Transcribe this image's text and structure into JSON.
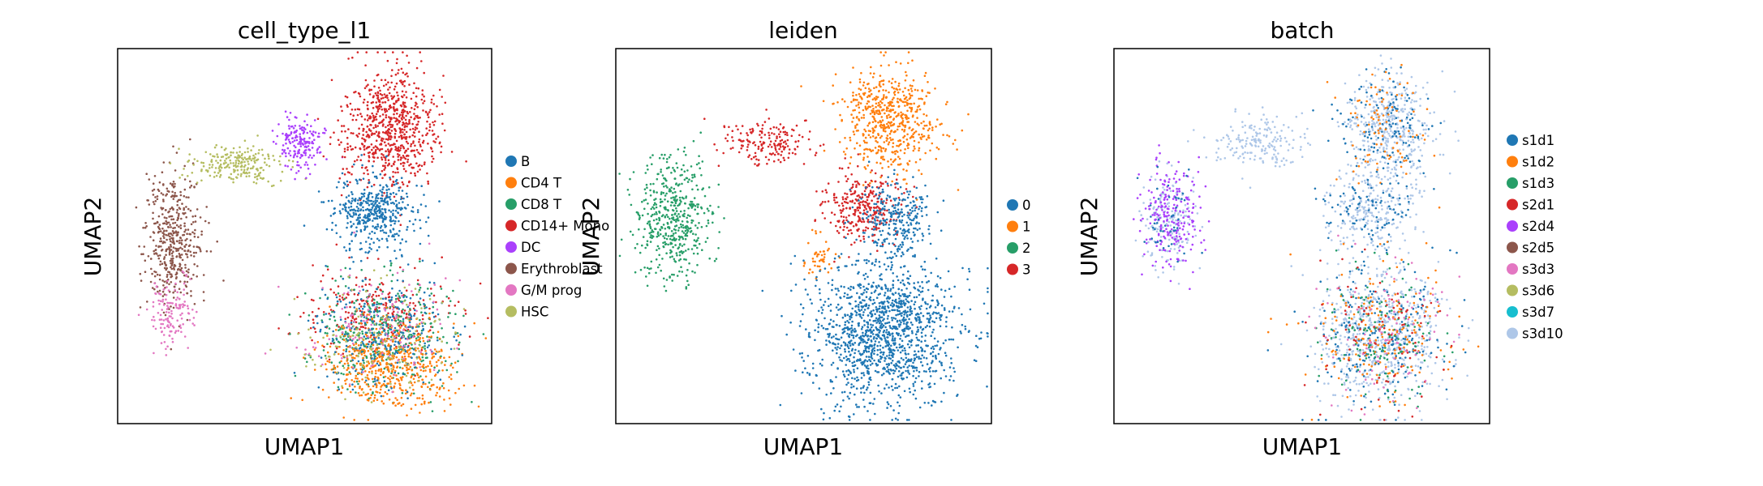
{
  "chart_data": [
    {
      "type": "scatter",
      "title": "cell_type_l1",
      "xlabel": "UMAP1",
      "ylabel": "UMAP2",
      "ticks": "none",
      "legend": "right",
      "categories": [
        "B",
        "CD4 T",
        "CD8 T",
        "CD14+ Mono",
        "DC",
        "Erythroblast",
        "G/M prog",
        "HSC"
      ],
      "colors": [
        "#1f77b4",
        "#ff7f0e",
        "#279e68",
        "#d62728",
        "#aa40fc",
        "#8c564b",
        "#e377c2",
        "#b5bd61"
      ],
      "clusters": [
        {
          "cat": 5,
          "x": [
            0.07,
            0.23
          ],
          "y": [
            0.3,
            0.72
          ],
          "weight": 10
        },
        {
          "cat": 6,
          "x": [
            0.07,
            0.21
          ],
          "y": [
            0.6,
            0.8
          ],
          "weight": 3
        },
        {
          "cat": 7,
          "x": [
            0.18,
            0.45
          ],
          "y": [
            0.26,
            0.36
          ],
          "weight": 5
        },
        {
          "cat": 4,
          "x": [
            0.42,
            0.55
          ],
          "y": [
            0.18,
            0.32
          ],
          "weight": 4
        },
        {
          "cat": 3,
          "x": [
            0.6,
            0.86
          ],
          "y": [
            0.05,
            0.38
          ],
          "weight": 16
        },
        {
          "cat": 0,
          "x": [
            0.56,
            0.8
          ],
          "y": [
            0.33,
            0.54
          ],
          "weight": 10
        },
        {
          "cat": 3,
          "x": [
            0.5,
            0.9
          ],
          "y": [
            0.58,
            0.82
          ],
          "weight": 6
        },
        {
          "cat": 2,
          "x": [
            0.52,
            0.9
          ],
          "y": [
            0.6,
            0.92
          ],
          "weight": 9
        },
        {
          "cat": 1,
          "x": [
            0.55,
            0.9
          ],
          "y": [
            0.72,
            0.96
          ],
          "weight": 12
        },
        {
          "cat": 0,
          "x": [
            0.52,
            0.9
          ],
          "y": [
            0.6,
            0.92
          ],
          "weight": 6
        },
        {
          "cat": 6,
          "x": [
            0.5,
            0.9
          ],
          "y": [
            0.58,
            0.9
          ],
          "weight": 3
        },
        {
          "cat": 7,
          "x": [
            0.5,
            0.9
          ],
          "y": [
            0.62,
            0.92
          ],
          "weight": 3
        }
      ]
    },
    {
      "type": "scatter",
      "title": "leiden",
      "xlabel": "UMAP1",
      "ylabel": "UMAP2",
      "ticks": "none",
      "legend": "right",
      "categories": [
        "0",
        "1",
        "2",
        "3"
      ],
      "colors": [
        "#1f77b4",
        "#ff7f0e",
        "#279e68",
        "#d62728"
      ],
      "clusters": [
        {
          "cat": 2,
          "x": [
            0.05,
            0.26
          ],
          "y": [
            0.28,
            0.62
          ],
          "weight": 11
        },
        {
          "cat": 3,
          "x": [
            0.28,
            0.52
          ],
          "y": [
            0.18,
            0.32
          ],
          "weight": 4
        },
        {
          "cat": 1,
          "x": [
            0.6,
            0.86
          ],
          "y": [
            0.05,
            0.33
          ],
          "weight": 13
        },
        {
          "cat": 3,
          "x": [
            0.54,
            0.76
          ],
          "y": [
            0.33,
            0.52
          ],
          "weight": 7
        },
        {
          "cat": 0,
          "x": [
            0.64,
            0.84
          ],
          "y": [
            0.35,
            0.56
          ],
          "weight": 6
        },
        {
          "cat": 1,
          "x": [
            0.5,
            0.58
          ],
          "y": [
            0.5,
            0.62
          ],
          "weight": 1
        },
        {
          "cat": 0,
          "x": [
            0.52,
            0.92
          ],
          "y": [
            0.56,
            0.96
          ],
          "weight": 30
        }
      ]
    },
    {
      "type": "scatter",
      "title": "batch",
      "xlabel": "UMAP1",
      "ylabel": "UMAP2",
      "ticks": "none",
      "legend": "right",
      "categories": [
        "s1d1",
        "s1d2",
        "s1d3",
        "s2d1",
        "s2d4",
        "s2d5",
        "s3d3",
        "s3d6",
        "s3d7",
        "s3d10"
      ],
      "colors": [
        "#1f77b4",
        "#ff7f0e",
        "#279e68",
        "#d62728",
        "#aa40fc",
        "#8c564b",
        "#e377c2",
        "#b5bd61",
        "#17becf",
        "#aec7e8"
      ],
      "clusters": [
        {
          "cat": 9,
          "x": [
            0.07,
            0.23
          ],
          "y": [
            0.3,
            0.6
          ],
          "weight": 4
        },
        {
          "cat": 4,
          "x": [
            0.07,
            0.23
          ],
          "y": [
            0.3,
            0.6
          ],
          "weight": 5
        },
        {
          "cat": 0,
          "x": [
            0.07,
            0.23
          ],
          "y": [
            0.3,
            0.6
          ],
          "weight": 1
        },
        {
          "cat": 9,
          "x": [
            0.25,
            0.5
          ],
          "y": [
            0.18,
            0.32
          ],
          "weight": 4
        },
        {
          "cat": 9,
          "x": [
            0.6,
            0.86
          ],
          "y": [
            0.05,
            0.38
          ],
          "weight": 10
        },
        {
          "cat": 0,
          "x": [
            0.6,
            0.86
          ],
          "y": [
            0.05,
            0.38
          ],
          "weight": 3
        },
        {
          "cat": 1,
          "x": [
            0.6,
            0.86
          ],
          "y": [
            0.05,
            0.38
          ],
          "weight": 2
        },
        {
          "cat": 9,
          "x": [
            0.56,
            0.8
          ],
          "y": [
            0.33,
            0.54
          ],
          "weight": 5
        },
        {
          "cat": 0,
          "x": [
            0.56,
            0.8
          ],
          "y": [
            0.33,
            0.54
          ],
          "weight": 2
        },
        {
          "cat": 9,
          "x": [
            0.52,
            0.9
          ],
          "y": [
            0.56,
            0.96
          ],
          "weight": 14
        },
        {
          "cat": 0,
          "x": [
            0.52,
            0.9
          ],
          "y": [
            0.56,
            0.96
          ],
          "weight": 5
        },
        {
          "cat": 1,
          "x": [
            0.52,
            0.9
          ],
          "y": [
            0.56,
            0.96
          ],
          "weight": 4
        },
        {
          "cat": 2,
          "x": [
            0.52,
            0.9
          ],
          "y": [
            0.56,
            0.96
          ],
          "weight": 3
        },
        {
          "cat": 3,
          "x": [
            0.52,
            0.9
          ],
          "y": [
            0.56,
            0.96
          ],
          "weight": 2
        },
        {
          "cat": 6,
          "x": [
            0.52,
            0.9
          ],
          "y": [
            0.56,
            0.96
          ],
          "weight": 2
        }
      ]
    }
  ]
}
